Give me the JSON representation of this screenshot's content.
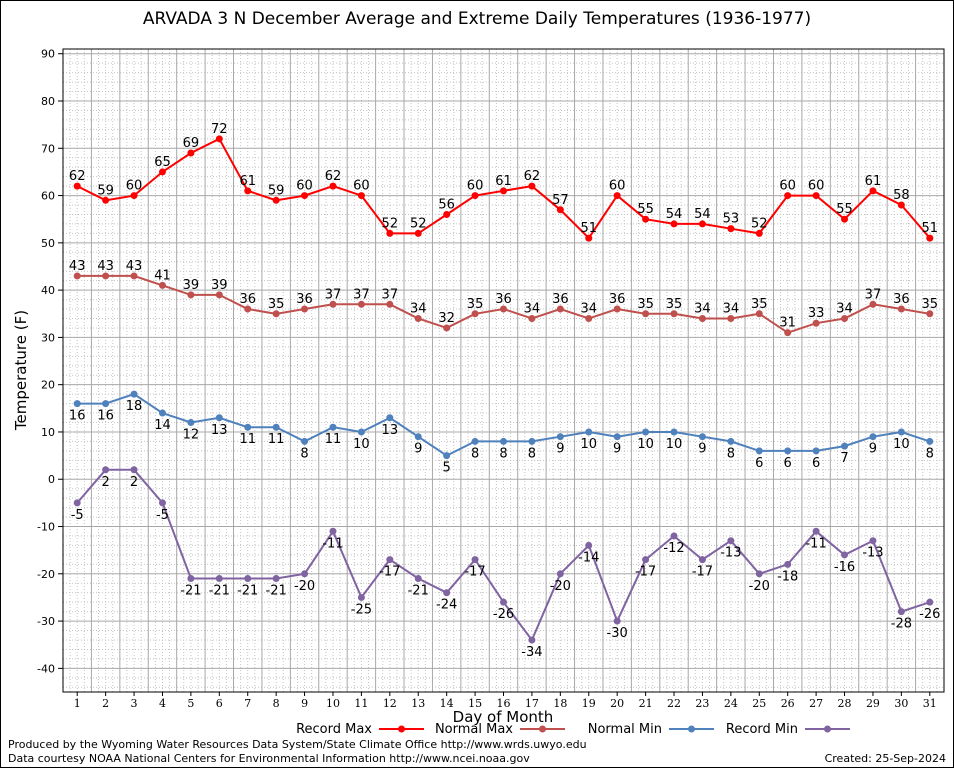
{
  "chart_data": {
    "type": "line",
    "title": "ARVADA 3 N December Average and Extreme Daily Temperatures (1936-1977)",
    "xlabel": "Day of Month",
    "ylabel": "Temperature (F)",
    "ylim": [
      -45,
      91
    ],
    "yticks": [
      90,
      80,
      70,
      60,
      50,
      40,
      30,
      20,
      10,
      0,
      -10,
      -20,
      -30,
      -40
    ],
    "x": [
      1,
      2,
      3,
      4,
      5,
      6,
      7,
      8,
      9,
      10,
      11,
      12,
      13,
      14,
      15,
      16,
      17,
      18,
      19,
      20,
      21,
      22,
      23,
      24,
      25,
      26,
      27,
      28,
      29,
      30,
      31
    ],
    "grid": true,
    "legend_position": "bottom",
    "series": [
      {
        "name": "Record Max",
        "color": "#ff0000",
        "label_side": "above",
        "values": [
          62,
          59,
          60,
          65,
          69,
          72,
          61,
          59,
          60,
          62,
          60,
          52,
          52,
          56,
          60,
          61,
          62,
          57,
          51,
          60,
          55,
          54,
          54,
          53,
          52,
          60,
          60,
          55,
          61,
          58,
          51
        ]
      },
      {
        "name": "Normal Max",
        "color": "#c0504d",
        "label_side": "above",
        "values": [
          43,
          43,
          43,
          41,
          39,
          39,
          36,
          35,
          36,
          37,
          37,
          37,
          34,
          32,
          35,
          36,
          34,
          36,
          34,
          36,
          35,
          35,
          34,
          34,
          35,
          31,
          33,
          34,
          37,
          36,
          35
        ]
      },
      {
        "name": "Normal Min",
        "color": "#4f81bd",
        "label_side": "below",
        "values": [
          16,
          16,
          18,
          14,
          12,
          13,
          11,
          11,
          8,
          11,
          10,
          13,
          9,
          5,
          8,
          8,
          8,
          9,
          10,
          9,
          10,
          10,
          9,
          8,
          6,
          6,
          6,
          7,
          9,
          10,
          8
        ]
      },
      {
        "name": "Record Min",
        "color": "#8064a2",
        "label_side": "below",
        "values": [
          -5,
          2,
          2,
          -5,
          -21,
          -21,
          -21,
          -21,
          -20,
          -11,
          -25,
          -17,
          -21,
          -24,
          -17,
          -26,
          -34,
          -20,
          -14,
          -30,
          -17,
          -12,
          -17,
          -13,
          -20,
          -18,
          -11,
          -16,
          -13,
          -28,
          -26
        ]
      }
    ]
  },
  "footer": {
    "produced_by": "Produced by the Wyoming Water Resources Data System/State Climate Office http://www.wrds.uwyo.edu",
    "courtesy": "Data courtesy NOAA National Centers for Environmental Information http://www.ncei.noaa.gov",
    "created": "Created:  25-Sep-2024"
  }
}
